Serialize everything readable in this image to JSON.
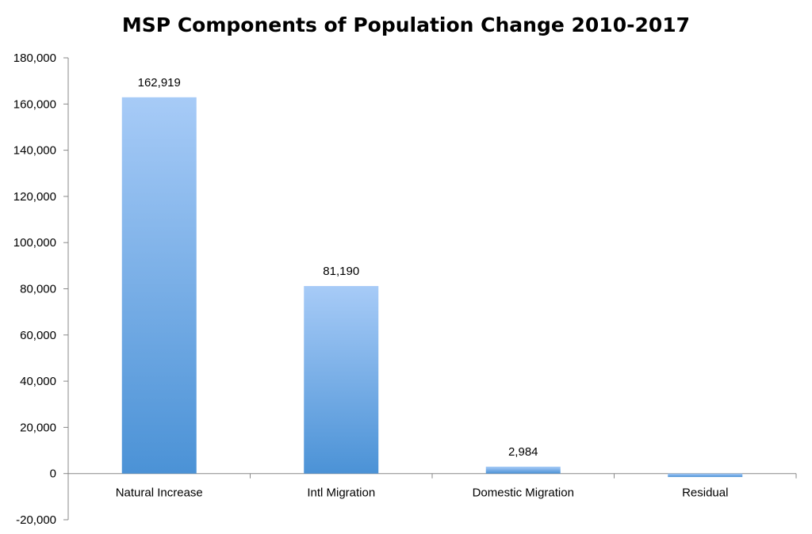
{
  "chart_data": {
    "type": "bar",
    "title": "MSP Components of Population Change 2010-2017",
    "xlabel": "",
    "ylabel": "",
    "categories": [
      "Natural Increase",
      "Intl Migration",
      "Domestic Migration",
      "Residual"
    ],
    "values": [
      162919,
      81190,
      2984,
      -1500
    ],
    "data_labels": [
      "162,919",
      "81,190",
      "2,984",
      ""
    ],
    "ylim": [
      -20000,
      180000
    ],
    "yticks": [
      -20000,
      0,
      20000,
      40000,
      60000,
      80000,
      100000,
      120000,
      140000,
      160000,
      180000
    ],
    "ytick_labels": [
      "-20,000",
      "0",
      "20,000",
      "40,000",
      "60,000",
      "80,000",
      "100,000",
      "120,000",
      "140,000",
      "160,000",
      "180,000"
    ],
    "grid": false,
    "legend": "none",
    "colors": {
      "bar_top": "#a7cbf7",
      "bar_bottom": "#4b92d6",
      "axis": "#888888"
    }
  }
}
